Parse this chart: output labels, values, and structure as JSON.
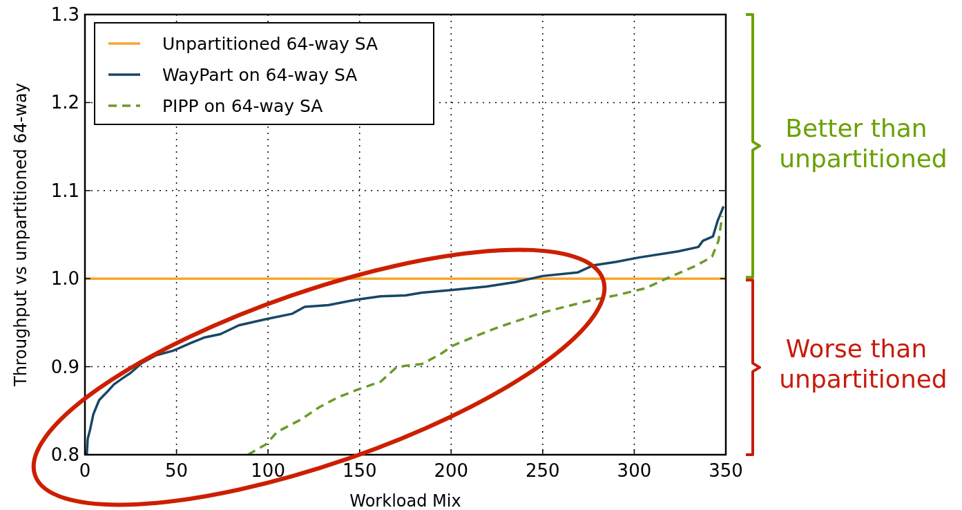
{
  "chart_data": {
    "type": "line",
    "xlabel": "Workload Mix",
    "ylabel": "Throughput vs unpartitioned 64-way",
    "xlim": [
      0,
      350
    ],
    "ylim": [
      0.8,
      1.3
    ],
    "xticks": [
      0,
      50,
      100,
      150,
      200,
      250,
      300,
      350
    ],
    "yticks": [
      0.8,
      0.9,
      {
        "value": 1,
        "label": "1.0"
      },
      1.1,
      1.2,
      1.3
    ],
    "grid": true,
    "legend": "top left",
    "series": [
      {
        "name": "Unpartitioned 64-way SA",
        "color": "#f7a52c",
        "line_style": "solid",
        "x": [
          0,
          350
        ],
        "values": [
          1.0,
          1.0
        ]
      },
      {
        "name": "WayPart on 64-way SA",
        "color": "#174766",
        "line_style": "solid",
        "x": [
          1,
          1.5,
          2.75,
          4.6,
          7.75,
          11.5,
          15.9,
          20,
          25,
          31,
          39,
          48,
          58,
          65,
          74,
          84,
          99,
          113,
          120,
          133,
          148,
          161.5,
          175,
          184,
          200,
          219,
          235,
          250,
          269,
          277.5,
          290,
          302.5,
          324,
          335,
          337.5,
          343,
          345.6,
          348.75
        ],
        "values": [
          0.8,
          0.818,
          0.828,
          0.846,
          0.862,
          0.87,
          0.88,
          0.886,
          0.893,
          0.904,
          0.913,
          0.918,
          0.927,
          0.933,
          0.937,
          0.947,
          0.954,
          0.96,
          0.968,
          0.97,
          0.976,
          0.98,
          0.981,
          0.984,
          0.987,
          0.991,
          0.996,
          1.003,
          1.007,
          1.015,
          1.019,
          1.024,
          1.031,
          1.036,
          1.043,
          1.048,
          1.066,
          1.082
        ]
      },
      {
        "name": "PIPP on 64-way SA",
        "color": "#6b9a2a",
        "line_style": "dashed",
        "x": [
          89,
          99,
          105,
          118,
          128,
          138,
          149,
          161.5,
          170,
          175,
          184,
          194,
          201,
          215,
          226,
          237.5,
          249,
          264,
          277.5,
          290,
          306,
          317.5,
          334,
          342.5,
          346,
          348
        ],
        "values": [
          0.8,
          0.812,
          0.826,
          0.84,
          0.854,
          0.865,
          0.874,
          0.883,
          0.899,
          0.901,
          0.903,
          0.914,
          0.924,
          0.936,
          0.945,
          0.953,
          0.961,
          0.969,
          0.976,
          0.981,
          0.989,
          1.0,
          1.015,
          1.025,
          1.043,
          1.071
        ]
      }
    ],
    "annotations": [
      "Better than unpartitioned",
      "Worse than unpartitioned"
    ]
  }
}
